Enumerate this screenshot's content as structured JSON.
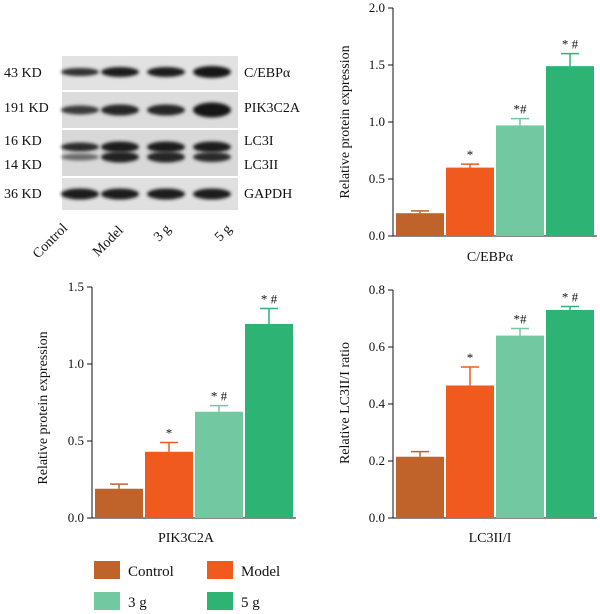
{
  "colors": {
    "Control": "#c0632a",
    "Model": "#f05a1f",
    "3 g": "#72c8a0",
    "5 g": "#2db474"
  },
  "blot": {
    "lanes": [
      "Control",
      "Model",
      "3 g",
      "5 g"
    ],
    "rows": [
      {
        "size": "43 KD",
        "protein": "C/EBPα"
      },
      {
        "size": "191 KD",
        "protein": "PIK3C2A"
      },
      {
        "size": "16 KD",
        "protein": "LC3I"
      },
      {
        "size": "14 KD",
        "protein": "LC3II"
      },
      {
        "size": "36 KD",
        "protein": "GAPDH"
      }
    ]
  },
  "legend": [
    "Control",
    "Model",
    "3 g",
    "5 g"
  ],
  "chart_data": [
    {
      "type": "bar",
      "title": "",
      "xlabel": "C/EBPα",
      "ylabel": "Relative protein expression",
      "categories": [
        "Control",
        "Model",
        "3 g",
        "5 g"
      ],
      "values": [
        0.2,
        0.6,
        0.97,
        1.49
      ],
      "errors": [
        0.02,
        0.03,
        0.06,
        0.11
      ],
      "annotations": [
        "",
        "*",
        "*#",
        "* #"
      ],
      "ylim": [
        0,
        2.0
      ],
      "yticks": [
        "0.0",
        "0.5",
        "1.0",
        "1.5",
        "2.0"
      ]
    },
    {
      "type": "bar",
      "title": "",
      "xlabel": "PIK3C2A",
      "ylabel": "Relative protein expression",
      "categories": [
        "Control",
        "Model",
        "3 g",
        "5 g"
      ],
      "values": [
        0.19,
        0.43,
        0.69,
        1.26
      ],
      "errors": [
        0.03,
        0.06,
        0.04,
        0.1
      ],
      "annotations": [
        "",
        "*",
        "* #",
        "* #"
      ],
      "ylim": [
        0,
        1.5
      ],
      "yticks": [
        "0.0",
        "0.5",
        "1.0",
        "1.5"
      ]
    },
    {
      "type": "bar",
      "title": "",
      "xlabel": "LC3II/I",
      "ylabel": "Relative LC3II/I ratio",
      "categories": [
        "Control",
        "Model",
        "3 g",
        "5 g"
      ],
      "values": [
        0.215,
        0.465,
        0.64,
        0.73
      ],
      "errors": [
        0.018,
        0.065,
        0.025,
        0.012
      ],
      "annotations": [
        "",
        "*",
        "*#",
        "* #"
      ],
      "ylim": [
        0,
        0.8
      ],
      "yticks": [
        "0.0",
        "0.2",
        "0.4",
        "0.6",
        "0.8"
      ]
    }
  ]
}
